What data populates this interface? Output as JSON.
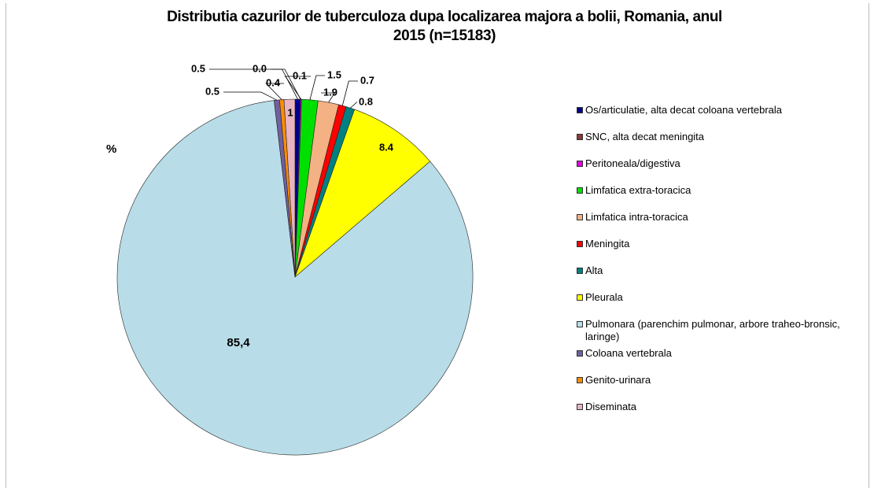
{
  "chart_data": {
    "type": "pie",
    "title": "Distributia cazurilor de tuberculoza dupa localizarea majora a bolii, Romania, anul 2015 (n=15183)",
    "axis_label": "%",
    "categories": [
      "Os/articulatie, alta decat coloana vertebrala",
      "SNC, alta decat meningita",
      "Peritoneala/digestiva",
      "Limfatica extra-toracica",
      "Limfatica intra-toracica",
      "Meningita",
      "Alta",
      "Pleurala",
      "Pulmonara (parenchim pulmonar, arbore traheo-bronsic, laringe)",
      "Coloana vertebrala",
      "Genito-urinara",
      "Diseminata"
    ],
    "values": [
      0.5,
      0.0,
      0.1,
      1.5,
      1.9,
      0.7,
      0.8,
      8.4,
      85.4,
      0.5,
      0.4,
      1
    ],
    "value_labels": [
      "0.5",
      "0.0",
      "0.1",
      "1.5",
      "1.9",
      "0.7",
      "0.8",
      "8.4",
      "85,4",
      "0.5",
      "0.4",
      "1"
    ],
    "colors": [
      "#00008b",
      "#8b3a3a",
      "#e000e0",
      "#00e000",
      "#f4b183",
      "#ff0000",
      "#008080",
      "#ffff00",
      "#b8dde8",
      "#7060a0",
      "#ff8c00",
      "#e8b4c0"
    ],
    "legend": "right"
  }
}
